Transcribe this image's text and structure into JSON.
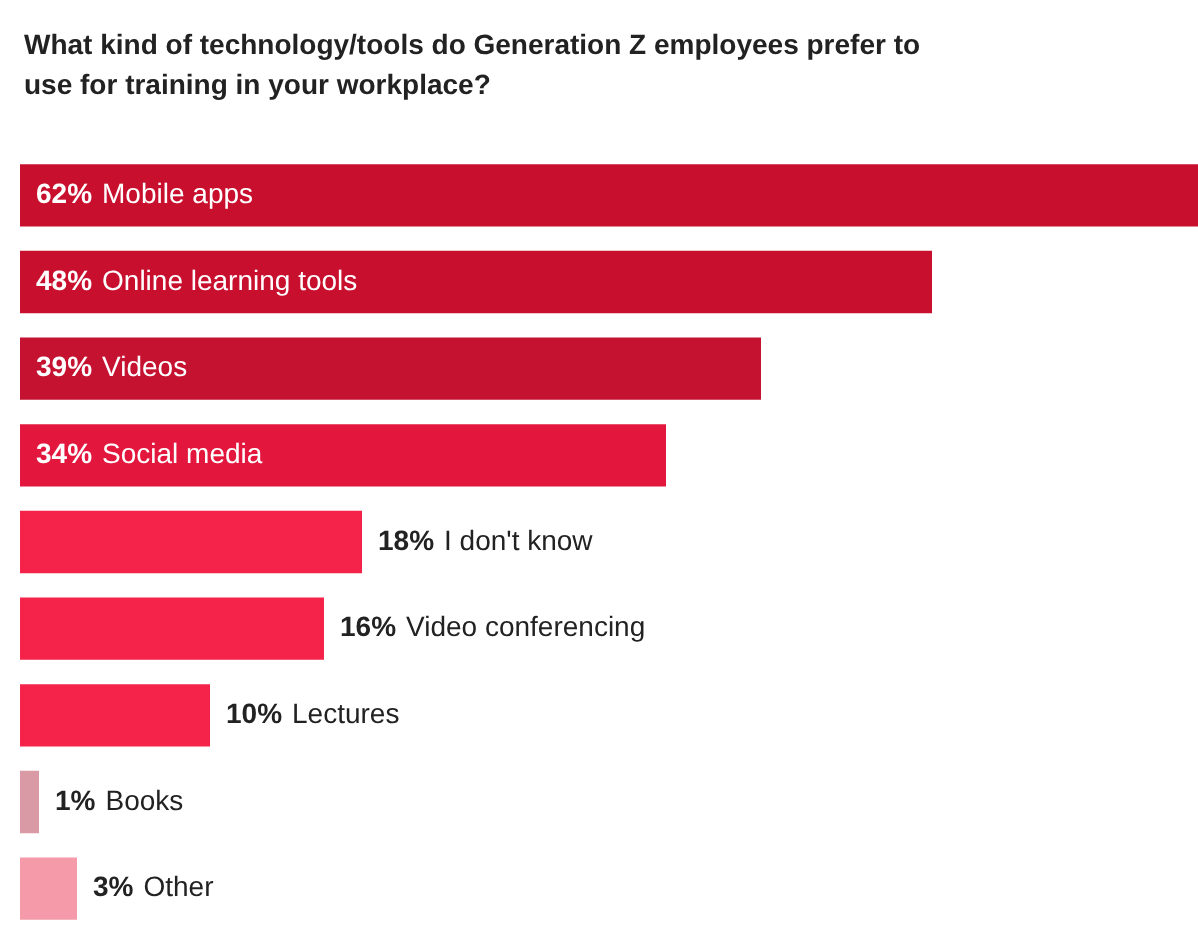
{
  "chart_data": {
    "type": "bar",
    "orientation": "horizontal",
    "title": "What kind of technology/tools do Generation Z employees prefer to use for training in your workplace?",
    "categories": [
      "Mobile apps",
      "Online learning tools",
      "Videos",
      "Social media",
      "I don't know",
      "Video conferencing",
      "Lectures",
      "Books",
      "Other"
    ],
    "values": [
      62,
      48,
      39,
      34,
      18,
      16,
      10,
      1,
      3
    ],
    "value_labels": [
      "62%",
      "48%",
      "39%",
      "34%",
      "18%",
      "16%",
      "10%",
      "1%",
      "3%"
    ],
    "colors": [
      "#c8102e",
      "#c8102e",
      "#c41230",
      "#e3173d",
      "#f5234a",
      "#f5234a",
      "#f5234a",
      "#d99aa5",
      "#f49aa8"
    ],
    "legend": false
  }
}
